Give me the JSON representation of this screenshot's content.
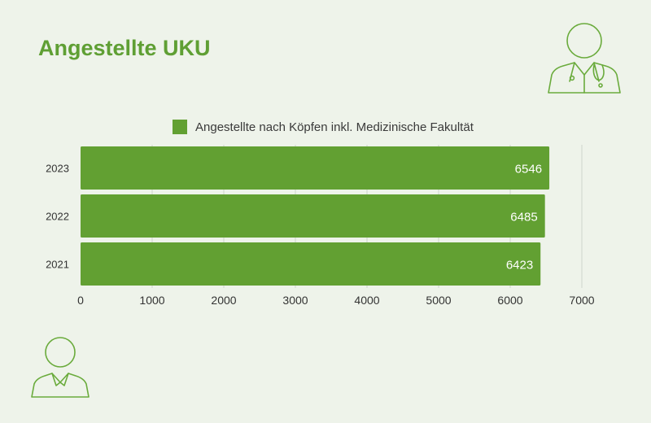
{
  "title": "Angestellte UKU",
  "colors": {
    "accent": "#5f9f34",
    "bar": "#62a032",
    "grid": "#cfd6cc",
    "axis_text": "#333333",
    "value_text": "#ffffff",
    "icon_stroke": "#6aab3c"
  },
  "icons": {
    "top_right": "doctor-icon",
    "bottom_left": "person-icon"
  },
  "chart_data": {
    "type": "bar",
    "orientation": "horizontal",
    "categories": [
      "2023",
      "2022",
      "2021"
    ],
    "series": [
      {
        "name": "Angestellte nach Köpfen inkl. Medizinische Fakultät",
        "values": [
          6546,
          6485,
          6423
        ]
      }
    ],
    "xlim": [
      0,
      7000
    ],
    "xticks": [
      0,
      1000,
      2000,
      3000,
      4000,
      5000,
      6000,
      7000
    ],
    "grid": true,
    "legend_position": "top"
  }
}
